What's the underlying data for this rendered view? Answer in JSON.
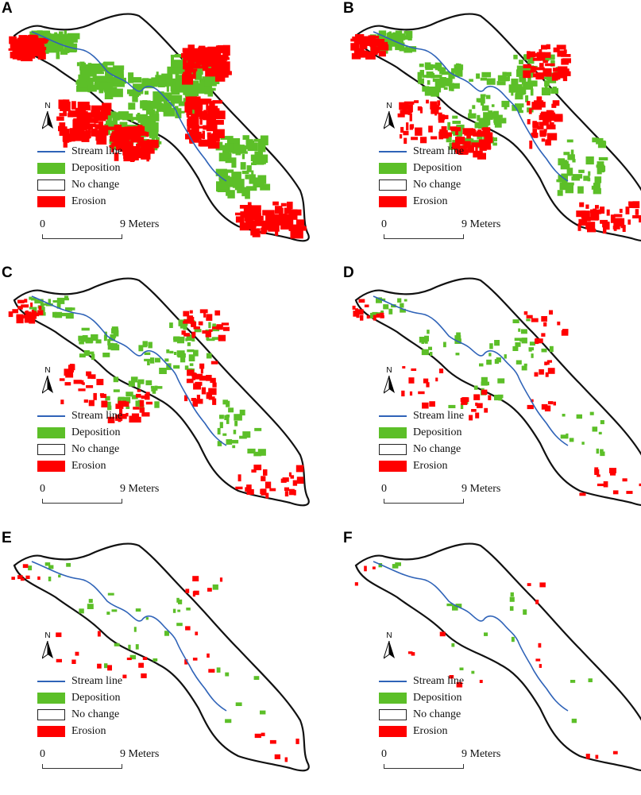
{
  "figure": {
    "legend": {
      "stream_label": "Stream line",
      "deposition_label": "Deposition",
      "nochange_label": "No change",
      "erosion_label": "Erosion"
    },
    "scale": {
      "start": "0",
      "end": "9 Meters"
    },
    "north_label": "N",
    "colors": {
      "deposition": "#5cbf28",
      "erosion": "#ff0000",
      "stream": "#2f63b8",
      "outline": "#111111"
    },
    "panels": [
      {
        "letter": "A",
        "density": 1.0
      },
      {
        "letter": "B",
        "density": 0.6
      },
      {
        "letter": "C",
        "density": 0.35
      },
      {
        "letter": "D",
        "density": 0.18
      },
      {
        "letter": "E",
        "density": 0.08
      },
      {
        "letter": "F",
        "density": 0.04
      }
    ]
  }
}
